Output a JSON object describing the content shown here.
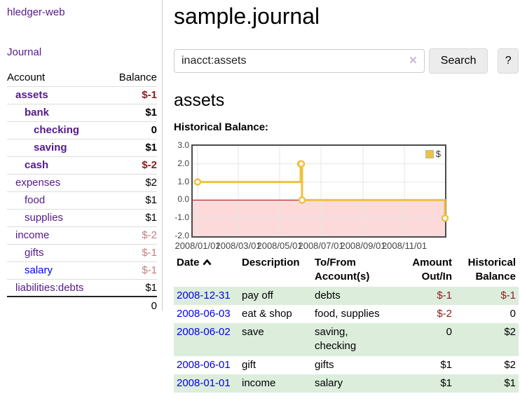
{
  "colors": {
    "link_purple": "#551a8b",
    "link_blue": "#0000ee",
    "negative_strong": "#8b1c1c",
    "negative_soft": "#c08080",
    "row_stripe_green": "#dceddc",
    "series_gold": "#edc240",
    "chart_negative_fill": "#fcdada",
    "chart_zero_line": "#aa0000",
    "chart_grid": "#e6e6e6",
    "chart_border": "#4c4c4c"
  },
  "sidebar": {
    "brand": "hledger-web",
    "nav_journal": "Journal",
    "header": {
      "account": "Account",
      "balance": "Balance"
    },
    "accounts": [
      {
        "name": "assets",
        "balance": "$-1",
        "indent": 1,
        "bold": true
      },
      {
        "name": "bank",
        "balance": "$1",
        "indent": 2,
        "bold": true
      },
      {
        "name": "checking",
        "balance": "0",
        "indent": 3,
        "bold": true
      },
      {
        "name": "saving",
        "balance": "$1",
        "indent": 3,
        "bold": true
      },
      {
        "name": "cash",
        "balance": "$-2",
        "indent": 2,
        "bold": true
      },
      {
        "name": "expenses",
        "balance": "$2",
        "indent": 1,
        "bold": false
      },
      {
        "name": "food",
        "balance": "$1",
        "indent": 2,
        "bold": false
      },
      {
        "name": "supplies",
        "balance": "$1",
        "indent": 2,
        "bold": false
      },
      {
        "name": "income",
        "balance": "$-2",
        "indent": 1,
        "bold": false
      },
      {
        "name": "gifts",
        "balance": "$-1",
        "indent": 2,
        "bold": false
      },
      {
        "name": "salary",
        "balance": "$-1",
        "indent": 2,
        "bold": false,
        "link_color": "blue"
      },
      {
        "name": "liabilities:debts",
        "balance": "$1",
        "indent": 1,
        "bold": false
      }
    ],
    "total": "0"
  },
  "main": {
    "title": "sample.journal",
    "search": {
      "value": "inacct:assets",
      "clear_icon": "✕",
      "search_button": "Search",
      "help_button": "?"
    },
    "account_heading": "assets",
    "chart_title": "Historical Balance:"
  },
  "chart_data": {
    "type": "line",
    "step": true,
    "x_type": "date",
    "title": "Historical Balance:",
    "series": [
      {
        "name": "$",
        "points": [
          [
            "2008-01-01",
            1.0
          ],
          [
            "2008-06-01",
            2.0
          ],
          [
            "2008-06-02",
            2.0
          ],
          [
            "2008-06-03",
            0.0
          ],
          [
            "2008-12-31",
            -1.0
          ]
        ]
      }
    ],
    "ylim": [
      -2,
      3
    ],
    "y_ticks": [
      3,
      2,
      1,
      0,
      -1,
      -2
    ],
    "x_ticks": [
      "2008/01/01",
      "2008/03/01",
      "2008/05/01",
      "2008/07/01",
      "2008/09/01",
      "2008/11/01"
    ],
    "legend": {
      "label": "$",
      "position": "top-right"
    },
    "shade_negative_region": true,
    "grid": true
  },
  "transactions": {
    "columns": [
      "Date",
      "Description",
      "To/From Account(s)",
      "Amount Out/In",
      "Historical Balance"
    ],
    "sort": {
      "column": "Date",
      "direction": "ascending"
    },
    "rows": [
      {
        "date": "2008-12-31",
        "description": "pay off",
        "accounts": "debts",
        "amount": "$-1",
        "balance": "$-1"
      },
      {
        "date": "2008-06-03",
        "description": "eat & shop",
        "accounts": "food, supplies",
        "amount": "$-2",
        "balance": "0"
      },
      {
        "date": "2008-06-02",
        "description": "save",
        "accounts": "saving, checking",
        "amount": "0",
        "balance": "$2"
      },
      {
        "date": "2008-06-01",
        "description": "gift",
        "accounts": "gifts",
        "amount": "$1",
        "balance": "$2"
      },
      {
        "date": "2008-01-01",
        "description": "income",
        "accounts": "salary",
        "amount": "$1",
        "balance": "$1"
      }
    ]
  }
}
